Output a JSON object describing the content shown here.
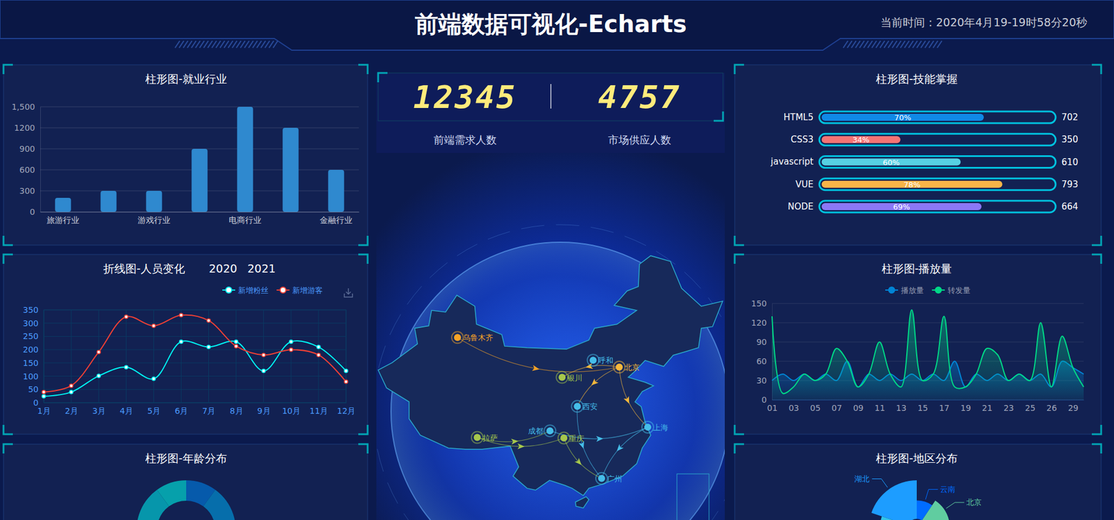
{
  "header": {
    "title": "前端数据可视化-Echarts",
    "time": "当前时间：2020年4月19-19时58分20秒"
  },
  "kpis": [
    {
      "value": 12345,
      "label": "前端需求人数"
    },
    {
      "value": 4757,
      "label": "市场供应人数"
    }
  ],
  "map": {
    "cities": [
      {
        "name": "乌鲁木齐",
        "lon": 87.62,
        "lat": 43.82,
        "color": "#f7a326"
      },
      {
        "name": "呼和",
        "lon": 111.75,
        "lat": 40.84,
        "color": "#46bee9"
      },
      {
        "name": "北京",
        "lon": 116.4,
        "lat": 39.9,
        "color": "#f6b83b"
      },
      {
        "name": "银川",
        "lon": 106.23,
        "lat": 38.49,
        "color": "#a6c84c"
      },
      {
        "name": "西安",
        "lon": 108.94,
        "lat": 34.34,
        "color": "#46bee9"
      },
      {
        "name": "上海",
        "lon": 121.47,
        "lat": 31.23,
        "color": "#46bee9"
      },
      {
        "name": "拉萨",
        "lon": 91.13,
        "lat": 29.65,
        "color": "#a6c84c"
      },
      {
        "name": "成都",
        "lon": 104.07,
        "lat": 30.67,
        "color": "#46bee9"
      },
      {
        "name": "重庆",
        "lon": 106.55,
        "lat": 29.56,
        "color": "#a6c84c"
      },
      {
        "name": "广州",
        "lon": 113.26,
        "lat": 23.13,
        "color": "#46bee9"
      }
    ],
    "routes": [
      [
        0,
        2
      ],
      [
        2,
        3
      ],
      [
        2,
        4
      ],
      [
        2,
        5
      ],
      [
        6,
        7
      ],
      [
        6,
        8
      ],
      [
        7,
        5
      ],
      [
        4,
        9
      ],
      [
        5,
        9
      ],
      [
        8,
        9
      ]
    ]
  },
  "chart_data": [
    {
      "type": "bar",
      "title": "柱形图-就业行业",
      "categories": [
        "旅游行业",
        null,
        "游戏行业",
        null,
        "电商行业",
        null,
        "金融行业"
      ],
      "values": [
        200,
        300,
        300,
        900,
        1500,
        1200,
        600
      ],
      "color": "#2f89cf",
      "ylim": [
        0,
        1500
      ],
      "yticks": [
        0,
        300,
        600,
        900,
        1200,
        {
          "value": 1500,
          "label": "1,500"
        }
      ],
      "grid": true
    },
    {
      "type": "line",
      "title": "折线图-人员变化",
      "annotations": [
        "2020",
        "2021"
      ],
      "categories": [
        "1月",
        "2月",
        "3月",
        "4月",
        "5月",
        "6月",
        "7月",
        "8月",
        "9月",
        "10月",
        "11月",
        "12月"
      ],
      "series": [
        {
          "name": "新增粉丝",
          "color": "#00f2f1",
          "values": [
            24,
            40,
            101,
            134,
            90,
            230,
            210,
            230,
            120,
            230,
            210,
            120
          ]
        },
        {
          "name": "新增游客",
          "color": "#ed3f35",
          "values": [
            40,
            64,
            191,
            324,
            290,
            330,
            310,
            213,
            180,
            200,
            180,
            79
          ]
        }
      ],
      "ylim": [
        0,
        350
      ],
      "yticks": [
        0,
        50,
        100,
        150,
        200,
        250,
        300,
        350
      ],
      "grid": true,
      "legend": "top-right",
      "marker": "circle"
    },
    {
      "type": "pie",
      "title": "柱形图-年龄分布",
      "values": [
        1,
        4,
        2,
        2,
        1
      ],
      "colors": [
        "#065aab",
        "#066eab",
        "#0682ab",
        "#0696ab",
        "#06a0ab"
      ]
    },
    {
      "type": "bar",
      "orientation": "horizontal",
      "title": "柱形图-技能掌握",
      "categories": [
        "HTML5",
        "CSS3",
        "javascript",
        "VUE",
        "NODE"
      ],
      "values": [
        70,
        34,
        60,
        78,
        69
      ],
      "value_labels": [
        "70%",
        "34%",
        "60%",
        "78%",
        "69%"
      ],
      "counts": [
        702,
        350,
        610,
        793,
        664
      ],
      "colors": [
        "#1089e7",
        "#f57474",
        "#56d0e3",
        "#f8b448",
        "#8b78f6"
      ],
      "xlim": [
        0,
        100
      ],
      "xticks": [],
      "tick_labels": "y",
      "data_labels": true
    },
    {
      "type": "area",
      "title": "柱形图-播放量",
      "categories": [
        "01",
        null,
        "03",
        null,
        "05",
        null,
        "07",
        null,
        "09",
        null,
        "11",
        null,
        "13",
        null,
        "15",
        null,
        "17",
        null,
        "19",
        null,
        "21",
        null,
        "23",
        null,
        "25",
        null,
        "26",
        null,
        "29",
        null
      ],
      "series": [
        {
          "name": "播放量",
          "color": "#0184d5",
          "values": [
            30,
            40,
            30,
            40,
            30,
            40,
            30,
            60,
            20,
            40,
            30,
            40,
            30,
            40,
            30,
            40,
            30,
            60,
            20,
            40,
            30,
            40,
            30,
            40,
            30,
            40,
            20,
            60,
            50,
            40
          ]
        },
        {
          "name": "转发量",
          "color": "#00d887",
          "values": [
            130,
            10,
            20,
            40,
            30,
            40,
            80,
            60,
            20,
            40,
            90,
            40,
            20,
            140,
            30,
            40,
            130,
            20,
            20,
            40,
            80,
            70,
            30,
            40,
            30,
            120,
            20,
            99,
            50,
            20
          ]
        }
      ],
      "ylim": [
        0,
        150
      ],
      "yticks": [
        0,
        30,
        60,
        90,
        120,
        150
      ],
      "grid": true,
      "legend": "top"
    },
    {
      "type": "rose",
      "title": "柱形图-地区分布",
      "categories": [
        "云南",
        "北京",
        null,
        null,
        null,
        null,
        null,
        "湖北"
      ],
      "values": [
        20,
        26,
        24,
        25,
        20,
        25,
        30,
        42
      ],
      "colors": [
        "#006cff",
        "#60cda0",
        "#ed8884",
        "#ff9f7f",
        "#0096ff",
        "#9fe6b8",
        "#32c5e9",
        "#1d9dff"
      ]
    }
  ]
}
